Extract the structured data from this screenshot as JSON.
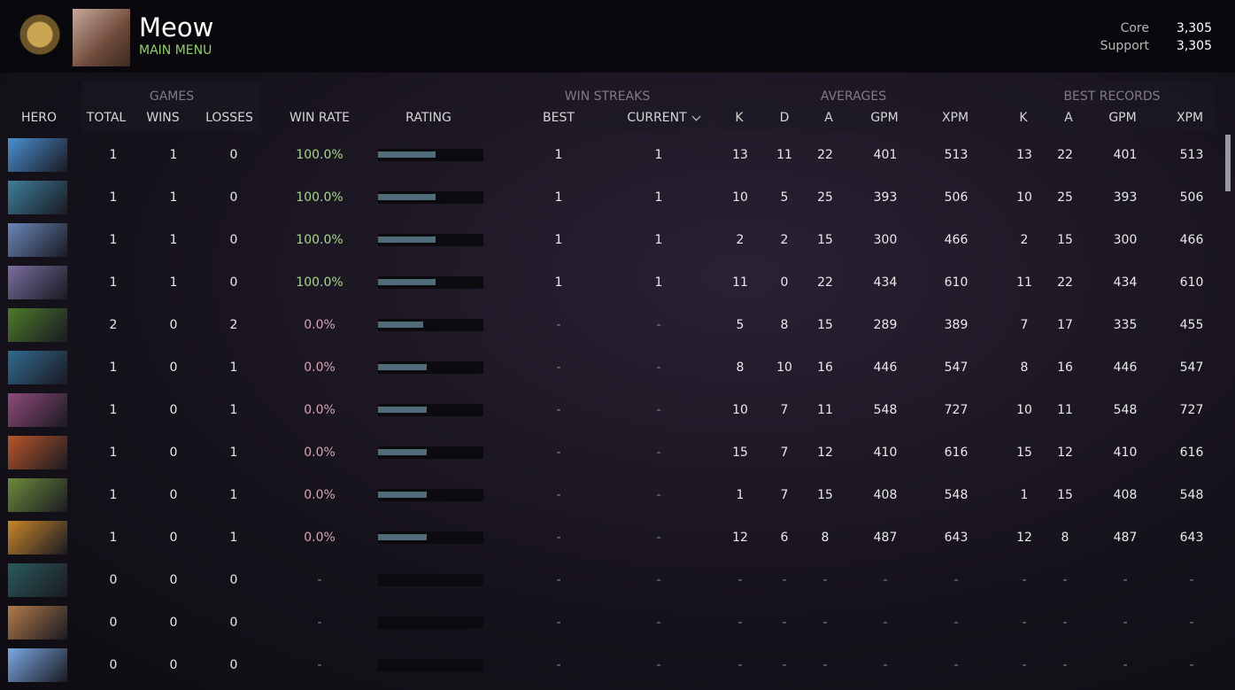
{
  "header": {
    "name": "Meow",
    "subtitle": "MAIN MENU",
    "ranks": [
      {
        "label": "Core",
        "value": "3,305"
      },
      {
        "label": "Support",
        "value": "3,305"
      }
    ]
  },
  "table": {
    "groups": [
      "GAMES",
      "WIN STREAKS",
      "AVERAGES",
      "BEST RECORDS"
    ],
    "columns": [
      "HERO",
      "TOTAL",
      "WINS",
      "LOSSES",
      "WIN RATE",
      "RATING",
      "BEST",
      "CURRENT",
      "K",
      "D",
      "A",
      "GPM",
      "XPM",
      "K",
      "A",
      "GPM",
      "XPM"
    ],
    "rows": [
      {
        "cells": [
          1,
          1,
          0,
          "100.0%",
          1,
          1,
          13,
          11,
          22,
          401,
          513,
          13,
          22,
          401,
          513
        ],
        "rating": 55
      },
      {
        "cells": [
          1,
          1,
          0,
          "100.0%",
          1,
          1,
          10,
          5,
          25,
          393,
          506,
          10,
          25,
          393,
          506
        ],
        "rating": 55
      },
      {
        "cells": [
          1,
          1,
          0,
          "100.0%",
          1,
          1,
          2,
          2,
          15,
          300,
          466,
          2,
          15,
          300,
          466
        ],
        "rating": 55
      },
      {
        "cells": [
          1,
          1,
          0,
          "100.0%",
          1,
          1,
          11,
          0,
          22,
          434,
          610,
          11,
          22,
          434,
          610
        ],
        "rating": 55
      },
      {
        "cells": [
          2,
          0,
          2,
          "0.0%",
          "-",
          "-",
          5,
          8,
          15,
          289,
          389,
          7,
          17,
          335,
          455
        ],
        "rating": 43
      },
      {
        "cells": [
          1,
          0,
          1,
          "0.0%",
          "-",
          "-",
          8,
          10,
          16,
          446,
          547,
          8,
          16,
          446,
          547
        ],
        "rating": 46
      },
      {
        "cells": [
          1,
          0,
          1,
          "0.0%",
          "-",
          "-",
          10,
          7,
          11,
          548,
          727,
          10,
          11,
          548,
          727
        ],
        "rating": 46
      },
      {
        "cells": [
          1,
          0,
          1,
          "0.0%",
          "-",
          "-",
          15,
          7,
          12,
          410,
          616,
          15,
          12,
          410,
          616
        ],
        "rating": 46
      },
      {
        "cells": [
          1,
          0,
          1,
          "0.0%",
          "-",
          "-",
          1,
          7,
          15,
          408,
          548,
          1,
          15,
          408,
          548
        ],
        "rating": 46
      },
      {
        "cells": [
          1,
          0,
          1,
          "0.0%",
          "-",
          "-",
          12,
          6,
          8,
          487,
          643,
          12,
          8,
          487,
          643
        ],
        "rating": 46
      },
      {
        "cells": [
          0,
          0,
          0,
          "-",
          "-",
          "-",
          "-",
          "-",
          "-",
          "-",
          "-",
          "-",
          "-",
          "-",
          "-"
        ],
        "rating": null
      },
      {
        "cells": [
          0,
          0,
          0,
          "-",
          "-",
          "-",
          "-",
          "-",
          "-",
          "-",
          "-",
          "-",
          "-",
          "-",
          "-"
        ],
        "rating": null
      },
      {
        "cells": [
          0,
          0,
          0,
          "-",
          "-",
          "-",
          "-",
          "-",
          "-",
          "-",
          "-",
          "-",
          "-",
          "-",
          "-"
        ],
        "rating": null
      }
    ]
  }
}
